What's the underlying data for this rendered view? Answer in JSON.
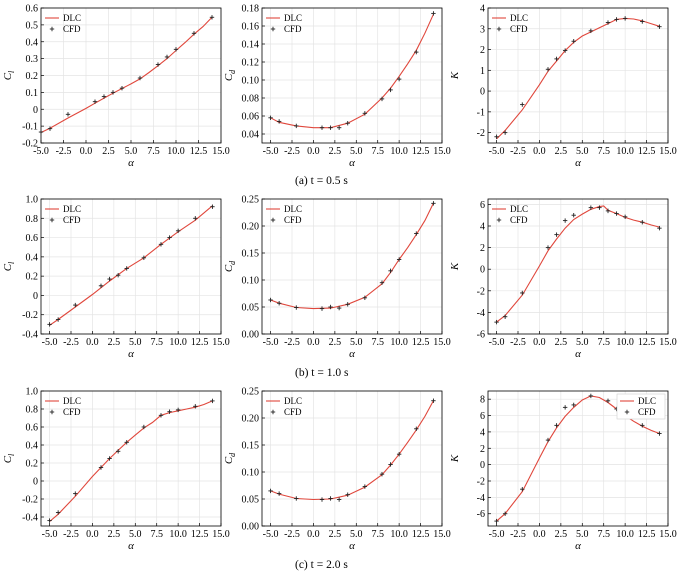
{
  "figure": {
    "captions": [
      "(a) t = 0.5 s",
      "(b) t = 1.0 s",
      "(c) t = 2.0 s"
    ],
    "legend": {
      "line": "DLC",
      "marker": "CFD"
    },
    "colors": {
      "line": "#e0473c",
      "marker": "#222222",
      "axes": "#000000"
    }
  },
  "chart_data": [
    {
      "type": "line",
      "row": 0,
      "col": 0,
      "xlabel": "α",
      "ylabel": "C_l",
      "xlim": [
        -5,
        15
      ],
      "ylim": [
        -0.2,
        0.6
      ],
      "xticks": [
        -5.0,
        -2.5,
        0.0,
        2.5,
        5.0,
        7.5,
        10.0,
        12.5,
        15.0
      ],
      "yticks": [
        -0.2,
        -0.1,
        0.0,
        0.1,
        0.2,
        0.3,
        0.4,
        0.5,
        0.6
      ],
      "xtick_labels": [
        "-5.0",
        "-2.5",
        "0.0",
        "2.5",
        "5.0",
        "7.5",
        "10.0",
        "12.5",
        "15.0"
      ],
      "ytick_labels": [
        "-0.2",
        "-0.1",
        "0",
        "0.1",
        "0.2",
        "0.3",
        "0.4",
        "0.5",
        "0.6"
      ],
      "legend_position": "top-left",
      "series": [
        {
          "name": "DLC",
          "kind": "line",
          "x": [
            -5,
            -4,
            -2,
            0,
            1,
            2,
            3,
            4,
            5,
            6,
            7,
            8,
            9,
            10,
            11,
            12,
            13,
            14
          ],
          "y": [
            -0.138,
            -0.112,
            -0.052,
            0.005,
            0.036,
            0.066,
            0.095,
            0.123,
            0.15,
            0.18,
            0.218,
            0.258,
            0.3,
            0.348,
            0.395,
            0.445,
            0.49,
            0.545
          ]
        },
        {
          "name": "CFD",
          "kind": "marker",
          "x": [
            -5,
            -4,
            -2,
            1,
            2,
            3,
            4,
            6,
            8,
            9,
            10,
            12,
            14
          ],
          "y": [
            -0.135,
            -0.115,
            -0.03,
            0.045,
            0.075,
            0.1,
            0.125,
            0.185,
            0.265,
            0.31,
            0.355,
            0.45,
            0.545
          ]
        }
      ]
    },
    {
      "type": "line",
      "row": 0,
      "col": 1,
      "xlabel": "α",
      "ylabel": "C_d",
      "xlim": [
        -6,
        15
      ],
      "ylim": [
        0.03,
        0.18
      ],
      "xticks": [
        -5.0,
        -2.5,
        0.0,
        2.5,
        5.0,
        7.5,
        10.0,
        12.5,
        15.0
      ],
      "yticks": [
        0.04,
        0.06,
        0.08,
        0.1,
        0.12,
        0.14,
        0.16,
        0.18
      ],
      "xtick_labels": [
        "-5.0",
        "-2.5",
        "0.0",
        "2.5",
        "5.0",
        "7.5",
        "10.0",
        "12.5",
        "15.0"
      ],
      "ytick_labels": [
        "0.04",
        "0.06",
        "0.08",
        "0.10",
        "0.12",
        "0.14",
        "0.16",
        "0.18"
      ],
      "legend_position": "top-left",
      "series": [
        {
          "name": "DLC",
          "kind": "line",
          "x": [
            -5,
            -4,
            -2,
            0,
            2,
            4,
            6,
            8,
            9,
            10,
            11,
            12,
            13,
            14
          ],
          "y": [
            0.058,
            0.053,
            0.049,
            0.047,
            0.047,
            0.052,
            0.062,
            0.08,
            0.091,
            0.104,
            0.118,
            0.133,
            0.152,
            0.173
          ]
        },
        {
          "name": "CFD",
          "kind": "marker",
          "x": [
            -5,
            -4,
            -2,
            1,
            2,
            3,
            4,
            6,
            8,
            9,
            10,
            12,
            14
          ],
          "y": [
            0.058,
            0.054,
            0.049,
            0.047,
            0.047,
            0.047,
            0.052,
            0.063,
            0.079,
            0.089,
            0.101,
            0.131,
            0.174
          ]
        }
      ]
    },
    {
      "type": "line",
      "row": 0,
      "col": 2,
      "xlabel": "α",
      "ylabel": "K",
      "xlim": [
        -6,
        15
      ],
      "ylim": [
        -2.5,
        4
      ],
      "xticks": [
        -5.0,
        -2.5,
        0.0,
        2.5,
        5.0,
        7.5,
        10.0,
        12.5,
        15.0
      ],
      "yticks": [
        -2,
        -1,
        0,
        1,
        2,
        3,
        4
      ],
      "xtick_labels": [
        "-5.0",
        "-2.5",
        "0.0",
        "2.5",
        "5.0",
        "7.5",
        "10.0",
        "12.5",
        "15.0"
      ],
      "ytick_labels": [
        "-2",
        "-1",
        "0",
        "1",
        "2",
        "3",
        "4"
      ],
      "legend_position": "top-left",
      "series": [
        {
          "name": "DLC",
          "kind": "line",
          "x": [
            -5,
            -4,
            -2,
            0,
            1,
            2,
            3,
            4,
            5,
            6,
            7,
            8,
            9,
            10,
            11,
            12,
            13,
            14
          ],
          "y": [
            -2.3,
            -1.9,
            -0.9,
            0.3,
            0.95,
            1.45,
            1.95,
            2.35,
            2.65,
            2.85,
            3.05,
            3.25,
            3.45,
            3.5,
            3.47,
            3.38,
            3.25,
            3.12
          ]
        },
        {
          "name": "CFD",
          "kind": "marker",
          "x": [
            -5,
            -4,
            -2,
            1,
            2,
            3,
            4,
            6,
            8,
            9,
            10,
            12,
            14
          ],
          "y": [
            -2.2,
            -2.0,
            -0.65,
            1.05,
            1.55,
            1.95,
            2.4,
            2.9,
            3.3,
            3.45,
            3.5,
            3.35,
            3.1
          ]
        }
      ]
    },
    {
      "type": "line",
      "row": 1,
      "col": 0,
      "xlabel": "α",
      "ylabel": "C_l",
      "xlim": [
        -6,
        15
      ],
      "ylim": [
        -0.4,
        1.0
      ],
      "xticks": [
        -5.0,
        -2.5,
        0.0,
        2.5,
        5.0,
        7.5,
        10.0,
        12.5,
        15.0
      ],
      "yticks": [
        -0.4,
        -0.2,
        0.0,
        0.2,
        0.4,
        0.6,
        0.8,
        1.0
      ],
      "xtick_labels": [
        "-5.0",
        "-2.5",
        "0.0",
        "2.5",
        "5.0",
        "7.5",
        "10.0",
        "12.5",
        "15.0"
      ],
      "ytick_labels": [
        "-0.4",
        "-0.2",
        "0",
        "0.2",
        "0.4",
        "0.6",
        "0.8",
        "1.0"
      ],
      "legend_position": "top-left",
      "series": [
        {
          "name": "DLC",
          "kind": "line",
          "x": [
            -5,
            -4,
            -2,
            0,
            2,
            4,
            6,
            8,
            10,
            12,
            14
          ],
          "y": [
            -0.31,
            -0.25,
            -0.12,
            0.01,
            0.15,
            0.28,
            0.39,
            0.53,
            0.66,
            0.78,
            0.93
          ]
        },
        {
          "name": "CFD",
          "kind": "marker",
          "x": [
            -5,
            -4,
            -2,
            1,
            2,
            3,
            4,
            6,
            8,
            9,
            10,
            12,
            14
          ],
          "y": [
            -0.3,
            -0.25,
            -0.1,
            0.1,
            0.17,
            0.21,
            0.28,
            0.39,
            0.53,
            0.6,
            0.67,
            0.8,
            0.92
          ]
        }
      ]
    },
    {
      "type": "line",
      "row": 1,
      "col": 1,
      "xlabel": "α",
      "ylabel": "C_d",
      "xlim": [
        -6,
        15
      ],
      "ylim": [
        0.0,
        0.25
      ],
      "xticks": [
        -5.0,
        -2.5,
        0.0,
        2.5,
        5.0,
        7.5,
        10.0,
        12.5,
        15.0
      ],
      "yticks": [
        0.0,
        0.05,
        0.1,
        0.15,
        0.2,
        0.25
      ],
      "xtick_labels": [
        "-5.0",
        "-2.5",
        "0.0",
        "2.5",
        "5.0",
        "7.5",
        "10.0",
        "12.5",
        "15.0"
      ],
      "ytick_labels": [
        "0.00",
        "0.05",
        "0.10",
        "0.15",
        "0.20",
        "0.25"
      ],
      "legend_position": "top-left",
      "series": [
        {
          "name": "DLC",
          "kind": "line",
          "x": [
            -5,
            -4,
            -2,
            0,
            2,
            4,
            6,
            8,
            9,
            10,
            11,
            12,
            13,
            14
          ],
          "y": [
            0.063,
            0.057,
            0.049,
            0.047,
            0.048,
            0.055,
            0.068,
            0.093,
            0.114,
            0.138,
            0.16,
            0.184,
            0.21,
            0.242
          ]
        },
        {
          "name": "CFD",
          "kind": "marker",
          "x": [
            -5,
            -4,
            -2,
            1,
            2,
            3,
            4,
            6,
            8,
            9,
            10,
            12,
            14
          ],
          "y": [
            0.063,
            0.057,
            0.049,
            0.047,
            0.05,
            0.048,
            0.055,
            0.067,
            0.095,
            0.117,
            0.138,
            0.186,
            0.242
          ]
        }
      ]
    },
    {
      "type": "line",
      "row": 1,
      "col": 2,
      "xlabel": "α",
      "ylabel": "K",
      "xlim": [
        -6,
        15
      ],
      "ylim": [
        -6,
        6.5
      ],
      "xticks": [
        -5.0,
        -2.5,
        0.0,
        2.5,
        5.0,
        7.5,
        10.0,
        12.5,
        15.0
      ],
      "yticks": [
        -6,
        -4,
        -2,
        0,
        2,
        4,
        6
      ],
      "xtick_labels": [
        "-5.0",
        "-2.5",
        "0.0",
        "2.5",
        "5.0",
        "7.5",
        "10.0",
        "12.5",
        "15.0"
      ],
      "ytick_labels": [
        "-6",
        "-4",
        "-2",
        "0",
        "2",
        "4",
        "6"
      ],
      "legend_position": "top-left",
      "series": [
        {
          "name": "DLC",
          "kind": "line",
          "x": [
            -5,
            -4,
            -2,
            0,
            1,
            2,
            3,
            4,
            5,
            6,
            7,
            7.5,
            8,
            9,
            10,
            11,
            12,
            13,
            14
          ],
          "y": [
            -4.9,
            -4.3,
            -2.4,
            0.3,
            1.7,
            2.8,
            3.8,
            4.6,
            5.1,
            5.55,
            5.8,
            5.85,
            5.45,
            5.15,
            4.8,
            4.55,
            4.35,
            4.1,
            3.9
          ]
        },
        {
          "name": "CFD",
          "kind": "marker",
          "x": [
            -5,
            -4,
            -2,
            1,
            2,
            3,
            4,
            6,
            7,
            8,
            9,
            10,
            12,
            14
          ],
          "y": [
            -4.9,
            -4.4,
            -2.2,
            2.0,
            3.2,
            4.5,
            5.0,
            5.7,
            5.7,
            5.4,
            5.15,
            4.85,
            4.35,
            3.8
          ]
        }
      ]
    },
    {
      "type": "line",
      "row": 2,
      "col": 0,
      "xlabel": "α",
      "ylabel": "C_l",
      "xlim": [
        -6,
        15
      ],
      "ylim": [
        -0.5,
        1.0
      ],
      "xticks": [
        -5.0,
        -2.5,
        0.0,
        2.5,
        5.0,
        7.5,
        10.0,
        12.5,
        15.0
      ],
      "yticks": [
        -0.4,
        -0.2,
        0.0,
        0.2,
        0.4,
        0.6,
        0.8,
        1.0
      ],
      "xtick_labels": [
        "-5.0",
        "-2.5",
        "0.0",
        "2.5",
        "5.0",
        "7.5",
        "10.0",
        "12.5",
        "15.0"
      ],
      "ytick_labels": [
        "-0.4",
        "-0.2",
        "0",
        "0.2",
        "0.4",
        "0.6",
        "0.8",
        "1.0"
      ],
      "legend_position": "top-left",
      "series": [
        {
          "name": "DLC",
          "kind": "line",
          "x": [
            -5,
            -4,
            -2,
            0,
            1,
            2,
            3,
            4,
            5,
            6,
            7,
            8,
            9,
            10,
            11,
            12,
            13,
            14
          ],
          "y": [
            -0.45,
            -0.37,
            -0.17,
            0.05,
            0.15,
            0.25,
            0.34,
            0.43,
            0.51,
            0.59,
            0.65,
            0.73,
            0.76,
            0.78,
            0.8,
            0.82,
            0.85,
            0.89
          ]
        },
        {
          "name": "CFD",
          "kind": "marker",
          "x": [
            -5,
            -4,
            -2,
            1,
            2,
            3,
            4,
            6,
            8,
            9,
            10,
            12,
            14
          ],
          "y": [
            -0.44,
            -0.35,
            -0.14,
            0.15,
            0.25,
            0.33,
            0.43,
            0.6,
            0.73,
            0.77,
            0.79,
            0.83,
            0.89
          ]
        }
      ]
    },
    {
      "type": "line",
      "row": 2,
      "col": 1,
      "xlabel": "α",
      "ylabel": "C_d",
      "xlim": [
        -6,
        15
      ],
      "ylim": [
        0.0,
        0.25
      ],
      "xticks": [
        -5.0,
        -2.5,
        0.0,
        2.5,
        5.0,
        7.5,
        10.0,
        12.5,
        15.0
      ],
      "yticks": [
        0.0,
        0.05,
        0.1,
        0.15,
        0.2,
        0.25
      ],
      "xtick_labels": [
        "-5.0",
        "-2.5",
        "0.0",
        "2.5",
        "5.0",
        "7.5",
        "10.0",
        "12.5",
        "15.0"
      ],
      "ytick_labels": [
        "0.00",
        "0.05",
        "0.10",
        "0.15",
        "0.20",
        "0.25"
      ],
      "legend_position": "top-left",
      "series": [
        {
          "name": "DLC",
          "kind": "line",
          "x": [
            -5,
            -4,
            -2,
            0,
            2,
            4,
            6,
            8,
            9,
            10,
            11,
            12,
            13,
            14
          ],
          "y": [
            0.065,
            0.059,
            0.051,
            0.049,
            0.05,
            0.057,
            0.072,
            0.095,
            0.113,
            0.133,
            0.155,
            0.178,
            0.203,
            0.232
          ]
        },
        {
          "name": "CFD",
          "kind": "marker",
          "x": [
            -5,
            -4,
            -2,
            1,
            2,
            3,
            4,
            6,
            8,
            9,
            10,
            12,
            14
          ],
          "y": [
            0.065,
            0.06,
            0.051,
            0.049,
            0.051,
            0.049,
            0.058,
            0.073,
            0.096,
            0.114,
            0.133,
            0.18,
            0.232
          ]
        }
      ]
    },
    {
      "type": "line",
      "row": 2,
      "col": 2,
      "xlabel": "α",
      "ylabel": "K",
      "xlim": [
        -6,
        15
      ],
      "ylim": [
        -7.5,
        9
      ],
      "xticks": [
        -5.0,
        -2.5,
        0.0,
        2.5,
        5.0,
        7.5,
        10.0,
        12.5,
        15.0
      ],
      "yticks": [
        -6,
        -4,
        -2,
        0,
        2,
        4,
        6,
        8
      ],
      "xtick_labels": [
        "-5.0",
        "-2.5",
        "0.0",
        "2.5",
        "5.0",
        "7.5",
        "10.0",
        "12.5",
        "15.0"
      ],
      "ytick_labels": [
        "-6",
        "-4",
        "-2",
        "0",
        "2",
        "4",
        "6",
        "8"
      ],
      "legend_position": "top-right",
      "series": [
        {
          "name": "DLC",
          "kind": "line",
          "x": [
            -5,
            -4,
            -2,
            0,
            1,
            2,
            3,
            4,
            5,
            6,
            7,
            8,
            9,
            10,
            11,
            12,
            13,
            14
          ],
          "y": [
            -6.9,
            -6.0,
            -3.3,
            0.8,
            2.8,
            4.5,
            5.9,
            7.0,
            7.9,
            8.4,
            8.2,
            7.6,
            6.8,
            6.0,
            5.3,
            4.7,
            4.2,
            3.8
          ]
        },
        {
          "name": "CFD",
          "kind": "marker",
          "x": [
            -5,
            -4,
            -2,
            1,
            2,
            3,
            4,
            6,
            8,
            9,
            10,
            12,
            14
          ],
          "y": [
            -6.9,
            -6.0,
            -3.0,
            3.0,
            4.8,
            7.0,
            7.3,
            8.4,
            7.8,
            6.8,
            6.1,
            4.8,
            3.8
          ]
        }
      ]
    }
  ]
}
